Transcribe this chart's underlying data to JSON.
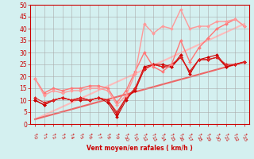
{
  "xlabel": "Vent moyen/en rafales ( km/h )",
  "bg_color": "#d4f0f0",
  "grid_color": "#aaaaaa",
  "xlim": [
    -0.5,
    23.5
  ],
  "ylim": [
    0,
    50
  ],
  "yticks": [
    0,
    5,
    10,
    15,
    20,
    25,
    30,
    35,
    40,
    45,
    50
  ],
  "xticks": [
    0,
    1,
    2,
    3,
    4,
    5,
    6,
    7,
    8,
    9,
    10,
    11,
    12,
    13,
    14,
    15,
    16,
    17,
    18,
    19,
    20,
    21,
    22,
    23
  ],
  "series": [
    {
      "x": [
        0,
        1,
        2,
        3,
        4,
        5,
        6,
        7,
        8,
        9,
        10,
        11,
        12,
        13,
        14,
        15,
        16,
        17,
        18,
        19,
        20,
        21,
        22,
        23
      ],
      "y": [
        10,
        8,
        10,
        11,
        10,
        10,
        10,
        11,
        9,
        3,
        10,
        15,
        24,
        25,
        25,
        24,
        29,
        21,
        27,
        28,
        29,
        24,
        25,
        26
      ],
      "color": "#cc0000",
      "lw": 0.8,
      "marker": "D",
      "ms": 2.0
    },
    {
      "x": [
        0,
        1,
        2,
        3,
        4,
        5,
        6,
        7,
        8,
        9,
        10,
        11,
        12,
        13,
        14,
        15,
        16,
        17,
        18,
        19,
        20,
        21,
        22,
        23
      ],
      "y": [
        10,
        8,
        10,
        11,
        10,
        11,
        10,
        11,
        10,
        4,
        11,
        14,
        23,
        25,
        24,
        24,
        28,
        22,
        27,
        27,
        28,
        24,
        25,
        26
      ],
      "color": "#cc0000",
      "lw": 0.8,
      "marker": "D",
      "ms": 2.0
    },
    {
      "x": [
        0,
        1,
        2,
        3,
        4,
        5,
        6,
        7,
        8,
        9,
        10,
        11,
        12,
        13,
        14,
        15,
        16,
        17,
        18,
        19,
        20,
        21,
        22,
        23
      ],
      "y": [
        11,
        9,
        10,
        11,
        10,
        11,
        10,
        11,
        10,
        5,
        11,
        15,
        23,
        25,
        24,
        25,
        28,
        22,
        27,
        27,
        28,
        25,
        25,
        26
      ],
      "color": "#dd2222",
      "lw": 0.8,
      "marker": "D",
      "ms": 2.0
    },
    {
      "x": [
        0,
        1,
        2,
        3,
        4,
        5,
        6,
        7,
        8,
        9,
        10,
        11,
        12,
        13,
        14,
        15,
        16,
        17,
        18,
        19,
        20,
        21,
        22,
        23
      ],
      "y": [
        19,
        13,
        15,
        14,
        15,
        15,
        16,
        16,
        15,
        9,
        14,
        22,
        30,
        24,
        22,
        25,
        35,
        26,
        32,
        36,
        40,
        42,
        44,
        41
      ],
      "color": "#ff7777",
      "lw": 1.0,
      "marker": "D",
      "ms": 2.0
    },
    {
      "x": [
        0,
        1,
        2,
        3,
        4,
        5,
        6,
        7,
        8,
        9,
        10,
        11,
        12,
        13,
        14,
        15,
        16,
        17,
        18,
        19,
        20,
        21,
        22,
        23
      ],
      "y": [
        19,
        12,
        14,
        13,
        14,
        14,
        15,
        15,
        14,
        8,
        12,
        21,
        42,
        38,
        41,
        40,
        48,
        40,
        41,
        41,
        43,
        43,
        44,
        41
      ],
      "color": "#ff9999",
      "lw": 1.0,
      "marker": "D",
      "ms": 2.0
    },
    {
      "x": [
        0,
        23
      ],
      "y": [
        2,
        26
      ],
      "color": "#ee6666",
      "lw": 1.5,
      "marker": null,
      "ms": 0
    },
    {
      "x": [
        0,
        23
      ],
      "y": [
        2,
        42
      ],
      "color": "#ffbbbb",
      "lw": 1.5,
      "marker": null,
      "ms": 0
    }
  ]
}
